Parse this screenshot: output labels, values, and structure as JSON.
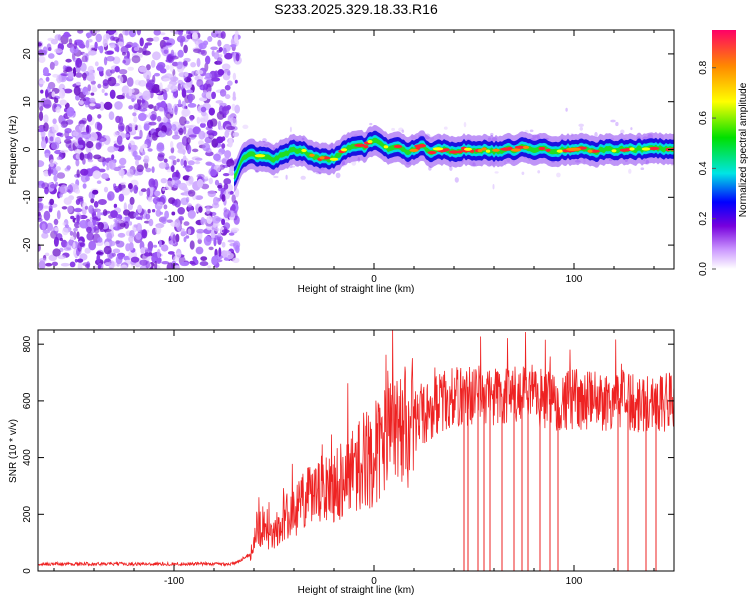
{
  "title": "S233.2025.329.18.33.R16",
  "chart_data": [
    {
      "type": "heatmap",
      "name": "spectrogram",
      "xlabel": "Height of straight line (km)",
      "ylabel": "Frequency (Hz)",
      "xlim": [
        -168,
        150
      ],
      "ylim": [
        -25,
        25
      ],
      "xticks": [
        -100,
        0,
        100
      ],
      "yticks": [
        -20,
        -10,
        0,
        10,
        20
      ],
      "noise_region_x": [
        -168,
        -70
      ],
      "signal_trace": {
        "x": [
          -70,
          -66,
          -62,
          -56,
          -50,
          -45,
          -40,
          -35,
          -30,
          -25,
          -22,
          -18,
          -15,
          -12,
          -8,
          -5,
          -2,
          0,
          4,
          8,
          12,
          16,
          20,
          24,
          28,
          32,
          36,
          40,
          45,
          50,
          55,
          60,
          65,
          70,
          75,
          80,
          85,
          90,
          95,
          100,
          105,
          110,
          115,
          120,
          125,
          130,
          135,
          140,
          145,
          150
        ],
        "y": [
          -6,
          -2,
          -1,
          -1.5,
          -2,
          -1,
          0,
          -0.5,
          -1.5,
          -2,
          -2,
          -1.5,
          0,
          0.5,
          1,
          0.5,
          1.5,
          2,
          1,
          0,
          0.5,
          -0.5,
          0,
          1,
          -0.5,
          0,
          0,
          -0.5,
          0,
          -0.5,
          0,
          -0.5,
          0,
          0,
          0.5,
          0,
          0,
          -0.5,
          0,
          0,
          0,
          -0.5,
          0,
          0,
          0,
          0,
          0,
          0.5,
          0,
          0
        ]
      },
      "colorbar": {
        "label": "Normalized spectral amplitude",
        "range": [
          0,
          0.95
        ],
        "ticks": [
          "0.0",
          "0.2",
          "0.4",
          "0.6",
          "0.8"
        ]
      }
    },
    {
      "type": "line",
      "name": "snr",
      "xlabel": "Height of straight line (km)",
      "ylabel": "SNR (10 * v/v)",
      "xlim": [
        -168,
        150
      ],
      "ylim": [
        0,
        850
      ],
      "xticks": [
        -100,
        0,
        100
      ],
      "yticks": [
        0,
        200,
        400,
        600,
        800
      ],
      "color": "#ee2222",
      "envelope": {
        "x": [
          -168,
          -120,
          -70,
          -62,
          -58,
          -50,
          -45,
          -40,
          -35,
          -30,
          -25,
          -20,
          -15,
          -10,
          -5,
          0,
          5,
          10,
          15,
          20,
          25,
          30,
          35,
          40,
          45,
          50,
          55,
          60,
          70,
          80,
          90,
          100,
          110,
          120,
          130,
          140,
          150
        ],
        "y": [
          25,
          25,
          25,
          60,
          150,
          130,
          180,
          210,
          250,
          260,
          290,
          310,
          330,
          360,
          390,
          410,
          450,
          480,
          500,
          530,
          550,
          580,
          600,
          610,
          620,
          620,
          615,
          615,
          615,
          610,
          605,
          600,
          600,
          600,
          600,
          590,
          600
        ]
      },
      "dropouts_x": [
        45,
        47,
        52,
        55,
        58,
        64,
        70,
        74,
        77,
        83,
        88,
        92,
        122,
        127,
        136,
        141
      ]
    }
  ]
}
